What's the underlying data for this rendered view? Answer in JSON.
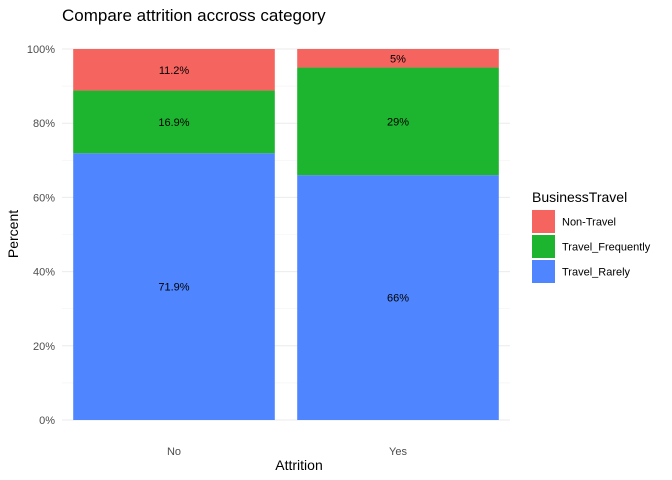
{
  "chart_data": {
    "type": "bar",
    "stacked": true,
    "title": "Compare attrition accross category",
    "xlabel": "Attrition",
    "ylabel": "Percent",
    "categories": [
      "No",
      "Yes"
    ],
    "ylim": [
      0,
      100
    ],
    "yticks": [
      0,
      20,
      40,
      60,
      80,
      100
    ],
    "ytick_labels": [
      "0%",
      "20%",
      "40%",
      "60%",
      "80%",
      "100%"
    ],
    "grid": true,
    "legend": {
      "title": "BusinessTravel",
      "position": "right"
    },
    "series": [
      {
        "name": "Travel_Rarely",
        "color": "#4F86FF",
        "values": [
          71.9,
          66
        ],
        "labels": [
          "71.9%",
          "66%"
        ]
      },
      {
        "name": "Travel_Frequently",
        "color": "#1DB42F",
        "values": [
          16.9,
          29
        ],
        "labels": [
          "16.9%",
          "29%"
        ]
      },
      {
        "name": "Non-Travel",
        "color": "#F5645F",
        "values": [
          11.2,
          5
        ],
        "labels": [
          "11.2%",
          "5%"
        ]
      }
    ],
    "legend_order": [
      "Non-Travel",
      "Travel_Frequently",
      "Travel_Rarely"
    ]
  }
}
